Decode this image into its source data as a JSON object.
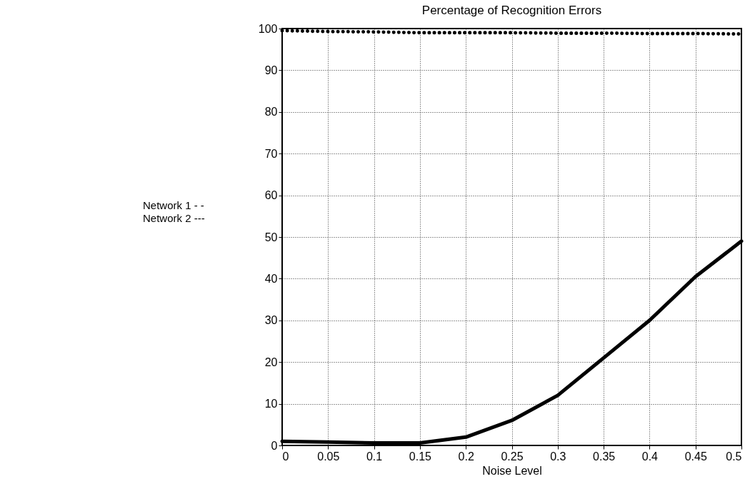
{
  "chart_data": {
    "type": "line",
    "title": "Percentage of Recognition Errors",
    "xlabel": "Noise Level",
    "x": [
      0,
      0.05,
      0.1,
      0.15,
      0.2,
      0.25,
      0.3,
      0.35,
      0.4,
      0.45,
      0.5
    ],
    "series": [
      {
        "color": "#000000",
        "line_style": "dotted",
        "values": [
          99.5,
          99.3,
          99.2,
          99,
          99,
          99,
          98.9,
          98.9,
          98.8,
          98.8,
          98.7
        ]
      },
      {
        "color": "#000000",
        "line_style": "solid",
        "values": [
          1,
          0.8,
          0.6,
          0.6,
          2,
          6,
          12,
          21,
          30,
          40.5,
          49
        ]
      }
    ],
    "xlim": [
      0,
      0.5
    ],
    "xticks": [
      0,
      0.05,
      0.1,
      0.15,
      0.2,
      0.25,
      0.3,
      0.35,
      0.4,
      0.45,
      0.5
    ],
    "ylim": [
      0,
      100
    ],
    "yticks": [
      0,
      10,
      20,
      30,
      40,
      50,
      60,
      70,
      80,
      90,
      100
    ],
    "grid": true,
    "marker": "none",
    "annotations": [
      "Network 1 - -",
      "Network 2 ---"
    ]
  }
}
